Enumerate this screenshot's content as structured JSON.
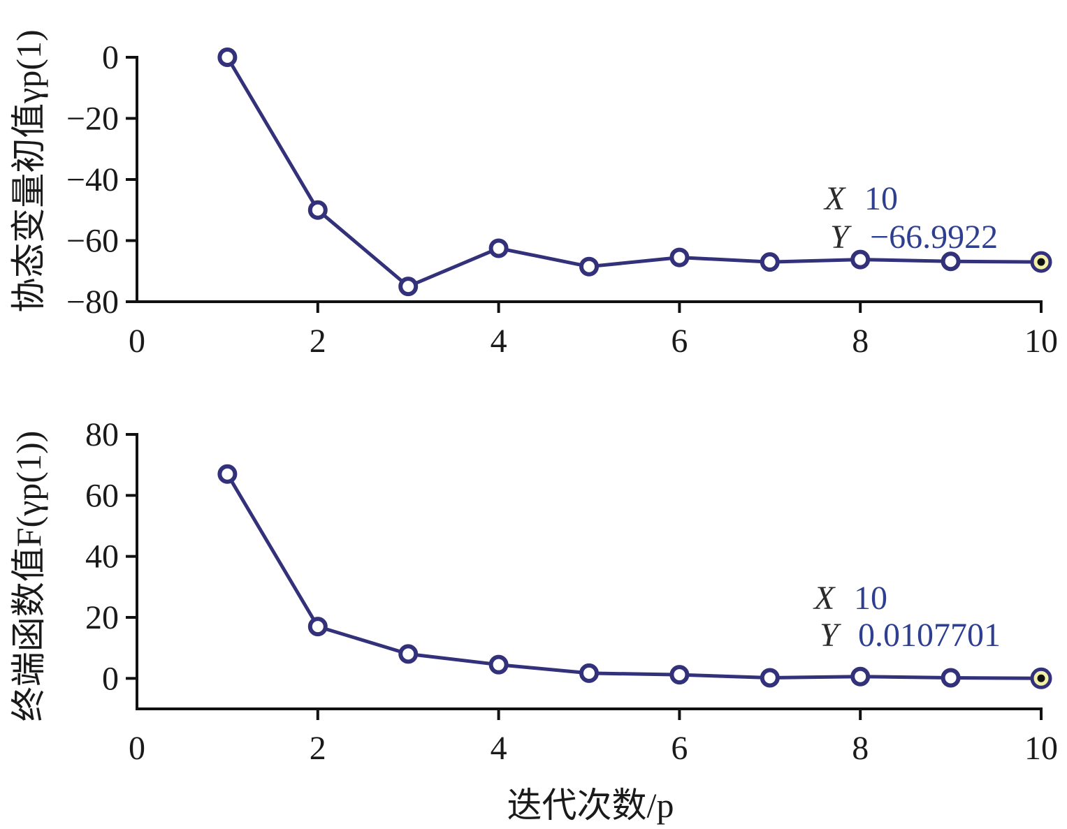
{
  "chart_data": [
    {
      "type": "line",
      "ylabel": "协态变量初值γp(1)",
      "x": [
        1,
        2,
        3,
        4,
        5,
        6,
        7,
        8,
        9,
        10
      ],
      "series": [
        {
          "values": [
            0,
            -50,
            -75,
            -62.5,
            -68.5,
            -65.5,
            -67,
            -66.2,
            -66.8,
            -66.9922
          ]
        }
      ],
      "xlim": [
        0,
        10
      ],
      "ylim": [
        -80,
        0
      ],
      "xticks": [
        "0",
        "2",
        "4",
        "6",
        "8",
        "10"
      ],
      "yticks": [
        "0",
        "−20",
        "−40",
        "−60",
        "−80"
      ],
      "datatip": {
        "x_key": "X",
        "x_value": "10",
        "y_key": "Y",
        "y_value": "−66.9922"
      },
      "line_color": "#33317a"
    },
    {
      "type": "line",
      "ylabel": "终端函数值F(γp(1))",
      "xlabel": "迭代次数/p",
      "x": [
        1,
        2,
        3,
        4,
        5,
        6,
        7,
        8,
        9,
        10
      ],
      "series": [
        {
          "values": [
            67,
            17,
            8,
            4.5,
            1.7,
            1.2,
            0.2,
            0.6,
            0.2,
            0.0107701
          ]
        }
      ],
      "xlim": [
        0,
        10
      ],
      "ylim": [
        -10,
        80
      ],
      "xticks": [
        "0",
        "2",
        "4",
        "6",
        "8",
        "10"
      ],
      "yticks": [
        "80",
        "60",
        "40",
        "20",
        "0"
      ],
      "datatip": {
        "x_key": "X",
        "x_value": "10",
        "y_key": "Y",
        "y_value": "0.0107701"
      },
      "line_color": "#33317a"
    }
  ]
}
